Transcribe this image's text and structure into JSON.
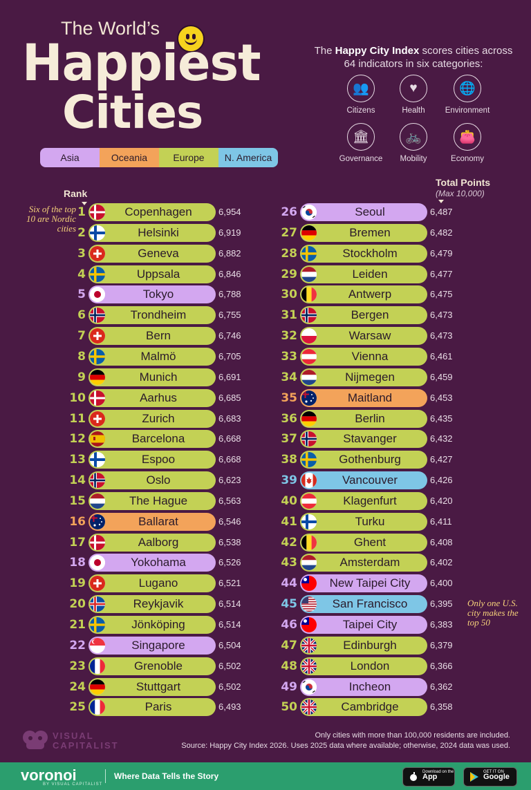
{
  "title": {
    "line1": "The World’s",
    "line2": "Happiest",
    "line3": "Cities"
  },
  "legend": [
    {
      "name": "Asia",
      "color": "#d3a7f0"
    },
    {
      "name": "Oceania",
      "color": "#f3a35a"
    },
    {
      "name": "Europe",
      "color": "#c3d155"
    },
    {
      "name": "N. America",
      "color": "#7ec6e6"
    }
  ],
  "intro": {
    "before": "The ",
    "bold": "Happy City Index",
    "after": " scores cities across 64 indicators in six categories:"
  },
  "categories": [
    {
      "label": "Citizens",
      "icon": "people-icon",
      "glyph": "👥"
    },
    {
      "label": "Health",
      "icon": "heart-plus-icon",
      "glyph": "♥"
    },
    {
      "label": "Environment",
      "icon": "globe-icon",
      "glyph": "🌐"
    },
    {
      "label": "Governance",
      "icon": "government-building-icon",
      "glyph": "🏛"
    },
    {
      "label": "Mobility",
      "icon": "bicycle-icon",
      "glyph": "🚲"
    },
    {
      "label": "Economy",
      "icon": "wallet-icon",
      "glyph": "👛"
    }
  ],
  "headers": {
    "rank": "Rank",
    "total": "Total Points",
    "max": "(Max 10,000)"
  },
  "notes": {
    "left": "Six of the top 10 are Nordic cities",
    "right": "Only one U.S. city makes the top 50"
  },
  "chart_data": {
    "type": "bar",
    "title": "The World’s Happiest Cities",
    "ylabel": "Total Points",
    "ylim": [
      0,
      10000
    ],
    "series_colors": {
      "Asia": "#d3a7f0",
      "Oceania": "#f3a35a",
      "Europe": "#c3d155",
      "N. America": "#7ec6e6"
    },
    "rows": [
      {
        "rank": "1",
        "city": "Copenhagen",
        "points": "6,954",
        "region": "Europe",
        "flag": "dk"
      },
      {
        "rank": "2",
        "city": "Helsinki",
        "points": "6,919",
        "region": "Europe",
        "flag": "fi"
      },
      {
        "rank": "3",
        "city": "Geneva",
        "points": "6,882",
        "region": "Europe",
        "flag": "ch"
      },
      {
        "rank": "4",
        "city": "Uppsala",
        "points": "6,846",
        "region": "Europe",
        "flag": "se"
      },
      {
        "rank": "5",
        "city": "Tokyo",
        "points": "6,788",
        "region": "Asia",
        "flag": "jp"
      },
      {
        "rank": "6",
        "city": "Trondheim",
        "points": "6,755",
        "region": "Europe",
        "flag": "no"
      },
      {
        "rank": "7",
        "city": "Bern",
        "points": "6,746",
        "region": "Europe",
        "flag": "ch"
      },
      {
        "rank": "8",
        "city": "Malmö",
        "points": "6,705",
        "region": "Europe",
        "flag": "se"
      },
      {
        "rank": "9",
        "city": "Munich",
        "points": "6,691",
        "region": "Europe",
        "flag": "de"
      },
      {
        "rank": "10",
        "city": "Aarhus",
        "points": "6,685",
        "region": "Europe",
        "flag": "dk"
      },
      {
        "rank": "11",
        "city": "Zurich",
        "points": "6,683",
        "region": "Europe",
        "flag": "ch"
      },
      {
        "rank": "12",
        "city": "Barcelona",
        "points": "6,668",
        "region": "Europe",
        "flag": "es"
      },
      {
        "rank": "13",
        "city": "Espoo",
        "points": "6,668",
        "region": "Europe",
        "flag": "fi"
      },
      {
        "rank": "14",
        "city": "Oslo",
        "points": "6,623",
        "region": "Europe",
        "flag": "no"
      },
      {
        "rank": "15",
        "city": "The Hague",
        "points": "6,563",
        "region": "Europe",
        "flag": "nl"
      },
      {
        "rank": "16",
        "city": "Ballarat",
        "points": "6,546",
        "region": "Oceania",
        "flag": "au"
      },
      {
        "rank": "17",
        "city": "Aalborg",
        "points": "6,538",
        "region": "Europe",
        "flag": "dk"
      },
      {
        "rank": "18",
        "city": "Yokohama",
        "points": "6,526",
        "region": "Asia",
        "flag": "jp"
      },
      {
        "rank": "19",
        "city": "Lugano",
        "points": "6,521",
        "region": "Europe",
        "flag": "ch"
      },
      {
        "rank": "20",
        "city": "Reykjavik",
        "points": "6,514",
        "region": "Europe",
        "flag": "is"
      },
      {
        "rank": "21",
        "city": "Jönköping",
        "points": "6,514",
        "region": "Europe",
        "flag": "se"
      },
      {
        "rank": "22",
        "city": "Singapore",
        "points": "6,504",
        "region": "Asia",
        "flag": "sg"
      },
      {
        "rank": "23",
        "city": "Grenoble",
        "points": "6,502",
        "region": "Europe",
        "flag": "fr"
      },
      {
        "rank": "24",
        "city": "Stuttgart",
        "points": "6,502",
        "region": "Europe",
        "flag": "de"
      },
      {
        "rank": "25",
        "city": "Paris",
        "points": "6,493",
        "region": "Europe",
        "flag": "fr"
      },
      {
        "rank": "26",
        "city": "Seoul",
        "points": "6,487",
        "region": "Asia",
        "flag": "kr"
      },
      {
        "rank": "27",
        "city": "Bremen",
        "points": "6,482",
        "region": "Europe",
        "flag": "de"
      },
      {
        "rank": "28",
        "city": "Stockholm",
        "points": "6,479",
        "region": "Europe",
        "flag": "se"
      },
      {
        "rank": "29",
        "city": "Leiden",
        "points": "6,477",
        "region": "Europe",
        "flag": "nl"
      },
      {
        "rank": "30",
        "city": "Antwerp",
        "points": "6,475",
        "region": "Europe",
        "flag": "be"
      },
      {
        "rank": "31",
        "city": "Bergen",
        "points": "6,473",
        "region": "Europe",
        "flag": "no"
      },
      {
        "rank": "32",
        "city": "Warsaw",
        "points": "6,473",
        "region": "Europe",
        "flag": "pl"
      },
      {
        "rank": "33",
        "city": "Vienna",
        "points": "6,461",
        "region": "Europe",
        "flag": "at"
      },
      {
        "rank": "34",
        "city": "Nijmegen",
        "points": "6,459",
        "region": "Europe",
        "flag": "nl"
      },
      {
        "rank": "35",
        "city": "Maitland",
        "points": "6,453",
        "region": "Oceania",
        "flag": "au"
      },
      {
        "rank": "36",
        "city": "Berlin",
        "points": "6,435",
        "region": "Europe",
        "flag": "de"
      },
      {
        "rank": "37",
        "city": "Stavanger",
        "points": "6,432",
        "region": "Europe",
        "flag": "no"
      },
      {
        "rank": "38",
        "city": "Gothenburg",
        "points": "6,427",
        "region": "Europe",
        "flag": "se"
      },
      {
        "rank": "39",
        "city": "Vancouver",
        "points": "6,426",
        "region": "N. America",
        "flag": "ca"
      },
      {
        "rank": "40",
        "city": "Klagenfurt",
        "points": "6,420",
        "region": "Europe",
        "flag": "at"
      },
      {
        "rank": "41",
        "city": "Turku",
        "points": "6,411",
        "region": "Europe",
        "flag": "fi"
      },
      {
        "rank": "42",
        "city": "Ghent",
        "points": "6,408",
        "region": "Europe",
        "flag": "be"
      },
      {
        "rank": "43",
        "city": "Amsterdam",
        "points": "6,402",
        "region": "Europe",
        "flag": "nl"
      },
      {
        "rank": "44",
        "city": "New Taipei City",
        "points": "6,400",
        "region": "Asia",
        "flag": "tw"
      },
      {
        "rank": "45",
        "city": "San Francisco",
        "points": "6,395",
        "region": "N. America",
        "flag": "us"
      },
      {
        "rank": "46",
        "city": "Taipei City",
        "points": "6,383",
        "region": "Asia",
        "flag": "tw"
      },
      {
        "rank": "47",
        "city": "Edinburgh",
        "points": "6,379",
        "region": "Europe",
        "flag": "gb"
      },
      {
        "rank": "48",
        "city": "London",
        "points": "6,366",
        "region": "Europe",
        "flag": "gb"
      },
      {
        "rank": "49",
        "city": "Incheon",
        "points": "6,362",
        "region": "Asia",
        "flag": "kr"
      },
      {
        "rank": "50",
        "city": "Cambridge",
        "points": "6,358",
        "region": "Europe",
        "flag": "gb"
      }
    ]
  },
  "footer": {
    "brand": "VISUAL CAPITALIST",
    "note1": "Only cities with more than 100,000 residents are included.",
    "note2": "Source: Happy City Index 2026. Uses 2025 data where available; otherwise, 2024 data was used.",
    "voronoi": "voronoi",
    "voronoi_sub": "BY VISUAL CAPITALIST",
    "tagline": "Where Data Tells the Story",
    "appstore_small": "Download on the",
    "appstore": "App Store",
    "googleplay_small": "GET IT ON",
    "googleplay": "Google Play"
  }
}
